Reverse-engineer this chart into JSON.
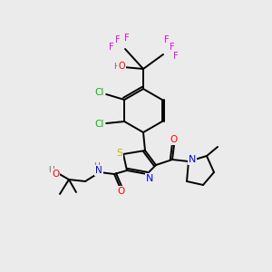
{
  "bg": "#ebebeb",
  "atom_colors": {
    "F": "#ee00ee",
    "Cl": "#00bb00",
    "O": "#ff0000",
    "N": "#0000ee",
    "S": "#bbbb00",
    "H": "#607060",
    "C": "#000000"
  }
}
